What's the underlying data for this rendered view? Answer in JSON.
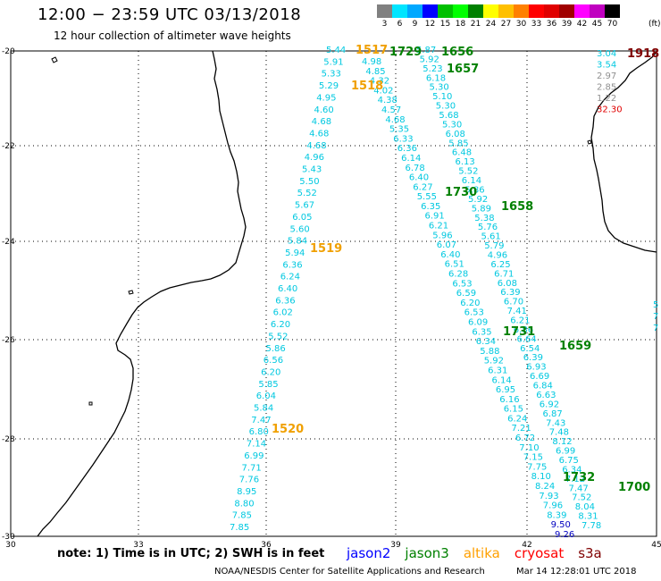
{
  "header": {
    "title": "12:00 − 23:59 UTC 03/13/2018",
    "subtitle": "12 hour collection of altimeter wave heights"
  },
  "legend": {
    "unit": "(ft)",
    "bins": [
      {
        "label": "3",
        "color": "#808080"
      },
      {
        "label": "6",
        "color": "#00e5ff"
      },
      {
        "label": "9",
        "color": "#00a8ff"
      },
      {
        "label": "12",
        "color": "#0000ff"
      },
      {
        "label": "15",
        "color": "#00c000"
      },
      {
        "label": "18",
        "color": "#00ff00"
      },
      {
        "label": "21",
        "color": "#008000"
      },
      {
        "label": "24",
        "color": "#ffff00"
      },
      {
        "label": "27",
        "color": "#ffc000"
      },
      {
        "label": "30",
        "color": "#ff8000"
      },
      {
        "label": "33",
        "color": "#ff0000"
      },
      {
        "label": "36",
        "color": "#e00000"
      },
      {
        "label": "39",
        "color": "#a00000"
      },
      {
        "label": "42",
        "color": "#ff00ff"
      },
      {
        "label": "45",
        "color": "#c000c0"
      },
      {
        "label": "70",
        "color": "#000000"
      }
    ]
  },
  "map": {
    "lon_ticks": [
      "30",
      "33",
      "36",
      "39",
      "42",
      "45"
    ],
    "lat_ticks": [
      "-20",
      "-22",
      "-24",
      "-26",
      "-28",
      "-30"
    ]
  },
  "tracks": {
    "colors": {
      "cyan": "#00c8e0",
      "gray": "#909090",
      "red": "#e00000",
      "blue": "#0000c0"
    },
    "times": [
      {
        "text": "1517",
        "color": "#f0a000"
      },
      {
        "text": "1518",
        "color": "#f0a000"
      },
      {
        "text": "1519",
        "color": "#f0a000"
      },
      {
        "text": "1520",
        "color": "#f0a000"
      },
      {
        "text": "1729",
        "color": "#008000"
      },
      {
        "text": "1730",
        "color": "#008000"
      },
      {
        "text": "1731",
        "color": "#008000"
      },
      {
        "text": "1732",
        "color": "#008000"
      },
      {
        "text": "1656",
        "color": "#008000"
      },
      {
        "text": "1657",
        "color": "#008000"
      },
      {
        "text": "1658",
        "color": "#008000"
      },
      {
        "text": "1659",
        "color": "#008000"
      },
      {
        "text": "1700",
        "color": "#008000"
      },
      {
        "text": "1918",
        "color": "#800000"
      }
    ],
    "t1": [
      "5.44",
      "5.91",
      "5.33",
      "5.29",
      "4.95",
      "4.60",
      "4.68",
      "4.68",
      "4.68",
      "4.96",
      "5.43",
      "5.50",
      "5.52",
      "5.67",
      "6.05",
      "5.60",
      "5.84",
      "5.94",
      "6.36",
      "6.24",
      "6.40",
      "6.36",
      "6.02",
      "6.20",
      "5.52",
      "5.86",
      "6.56",
      "6.20",
      "5.85",
      "6.04",
      "5.84",
      "7.47",
      "6.80",
      "7.14",
      "6.99",
      "7.71",
      "7.76",
      "8.95",
      "8.80",
      "7.85",
      "7.85"
    ],
    "t2": [
      "4.98",
      "4.85",
      "4.32",
      "4.02",
      "4.38",
      "4.57",
      "4.68",
      "5.35",
      "6.33",
      "6.36",
      "6.14",
      "6.78",
      "6.40",
      "6.27",
      "5.55",
      "6.35",
      "6.91",
      "6.21",
      "5.96",
      "6.07",
      "6.40",
      "6.51",
      "6.28",
      "6.53",
      "6.59",
      "6.20",
      "6.53",
      "6.09",
      "6.35",
      "6.34",
      "5.88",
      "5.92",
      "6.31",
      "6.14",
      "6.95",
      "6.16",
      "6.15",
      "6.24",
      "7.21",
      "6.72",
      "7.10",
      "7.15",
      "7.75",
      "8.10",
      "8.24",
      "7.93",
      "7.96",
      "8.39",
      "9.50",
      "9.26"
    ],
    "t3": [
      "5.87",
      "5.92",
      "5.23",
      "6.18",
      "5.30",
      "5.10",
      "5.30",
      "5.68",
      "5.30",
      "6.08",
      "5.85",
      "6.48",
      "6.13",
      "5.52",
      "6.14",
      "5.86",
      "5.92",
      "5.89",
      "5.38",
      "5.76",
      "5.61",
      "5.79",
      "4.96",
      "6.25",
      "6.71",
      "6.08",
      "6.39",
      "6.70",
      "7.41",
      "6.21",
      "6.86",
      "6.64",
      "6.54",
      "6.39",
      "6.93",
      "6.69",
      "6.84",
      "6.63",
      "6.92",
      "6.87",
      "7.43",
      "7.48",
      "8.12",
      "6.99",
      "6.75",
      "6.34",
      "7.12",
      "7.47",
      "7.52",
      "8.04",
      "8.31",
      "7.78"
    ],
    "t4": [
      {
        "v": "3.04",
        "c": "cyan"
      },
      {
        "v": "3.54",
        "c": "cyan"
      },
      {
        "v": "2.97",
        "c": "gray"
      },
      {
        "v": "2.85",
        "c": "gray"
      },
      {
        "v": "1.22",
        "c": "gray"
      },
      {
        "v": "32.30",
        "c": "red"
      }
    ],
    "edge": [
      "5",
      "7",
      "7"
    ]
  },
  "footer": {
    "note": "note:  1) Time is in UTC;  2) SWH is in feet",
    "satellites": [
      {
        "name": "jason2",
        "color": "#0000ff"
      },
      {
        "name": "jason3",
        "color": "#008000"
      },
      {
        "name": "altika",
        "color": "#ffa000"
      },
      {
        "name": "cryosat",
        "color": "#ff0000"
      },
      {
        "name": "s3a",
        "color": "#800000"
      }
    ],
    "credit": "NOAA/NESDIS Center for Satellite Applications and Research",
    "timestamp": "Mar 14 12:28:01 UTC 2018"
  }
}
